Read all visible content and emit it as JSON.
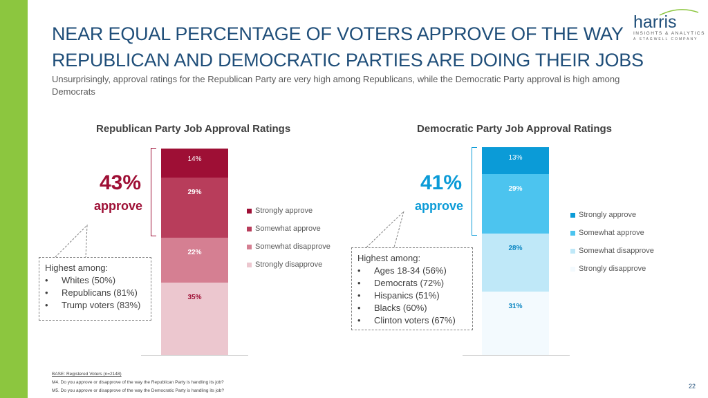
{
  "header": {
    "title_line1": "NEAR EQUAL PERCENTAGE OF VOTERS APPROVE OF THE WAY",
    "title_line2": "REPUBLICAN AND DEMOCRATIC PARTIES ARE DOING THEIR JOBS",
    "subtitle": "Unsurprisingly, approval ratings for the Republican Party are very high among Republicans, while the Democratic Party approval is high among Democrats"
  },
  "logo": {
    "name": "harris",
    "tagline": "INSIGHTS & ANALYTICS",
    "company": "A STAGWELL COMPANY"
  },
  "chart_data": [
    {
      "type": "bar",
      "stacked": true,
      "title": "Republican Party Job Approval Ratings",
      "categories": [
        "Strongly approve",
        "Somewhat approve",
        "Somewhat disapprove",
        "Strongly disapprove"
      ],
      "values": [
        14,
        29,
        22,
        35
      ],
      "labels": [
        "14%",
        "29%",
        "22%",
        "35%"
      ],
      "colors": [
        "#9e0f35",
        "#b83d5b",
        "#d57f92",
        "#ecc7cf"
      ],
      "label_colors": [
        "#ffffff",
        "#ffffff",
        "#ffffff",
        "#9e0f35"
      ],
      "label_bold": [
        false,
        true,
        true,
        true
      ],
      "legend": [
        "Strongly approve",
        "Somewhat approve",
        "Somewhat disapprove",
        "Strongly disapprove"
      ],
      "approve_pct": "43%",
      "approve_word": "approve",
      "accent": "#9e0f35",
      "callout_title": "Highest among:",
      "callout_items": [
        "Whites (50%)",
        "Republicans (81%)",
        "Trump voters (83%)"
      ],
      "bullet": "•"
    },
    {
      "type": "bar",
      "stacked": true,
      "title": "Democratic Party Job Approval Ratings",
      "categories": [
        "Strongly approve",
        "Somewhat approve",
        "Somewhat disapprove",
        "Strongly disapprove"
      ],
      "values": [
        13,
        29,
        28,
        31
      ],
      "labels": [
        "13%",
        "29%",
        "28%",
        "31%"
      ],
      "colors": [
        "#0b9bd7",
        "#4cc4ef",
        "#bfe8f8",
        "#f3fafe"
      ],
      "label_colors": [
        "#ffffff",
        "#ffffff",
        "#0b86c2",
        "#0b86c2"
      ],
      "label_bold": [
        false,
        true,
        true,
        true
      ],
      "legend": [
        "Strongly approve",
        "Somewhat approve",
        "Somewhat disapprove",
        "Strongly disapprove"
      ],
      "approve_pct": "41%",
      "approve_word": "approve",
      "accent": "#0b9bd7",
      "callout_title": "Highest among:",
      "callout_items": [
        "Ages 18-34 (56%)",
        "Democrats (72%)",
        "Hispanics (51%)",
        "Blacks (60%)",
        "Clinton voters (67%)"
      ],
      "bullet": "•"
    }
  ],
  "footer": {
    "base": "BASE: Registered Voters (n=2148)",
    "q1": "M4. Do you approve or disapprove of the way the Republican Party is handling its job?",
    "q2": "M5. Do you approve or disapprove of the way the Democratic Party is handling its job?"
  },
  "page_number": "22"
}
